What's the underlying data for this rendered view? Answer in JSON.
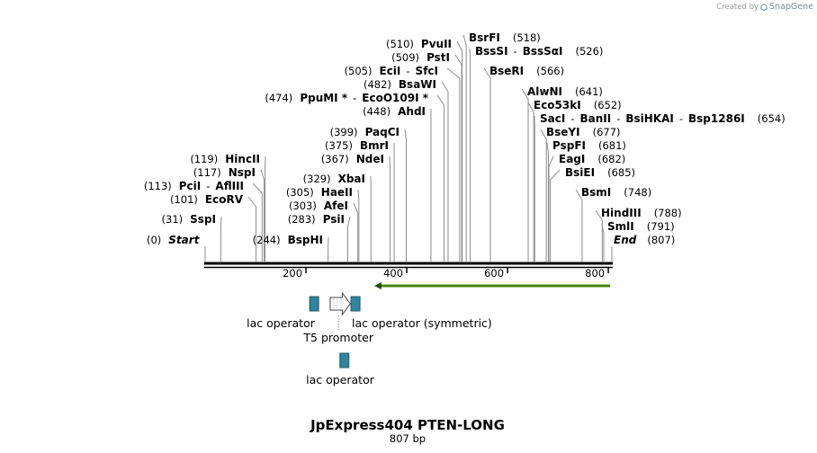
{
  "watermark": {
    "created_by": "Created by",
    "brand": "SnapGene",
    "logo_icon": "snapgene-logo-icon"
  },
  "plasmid": {
    "name": "JpExpress404 PTEN-LONG",
    "length_label": "807 bp",
    "length_bp": 807,
    "scale_ticks": [
      {
        "bp": 200,
        "label": "200"
      },
      {
        "bp": 400,
        "label": "400"
      },
      {
        "bp": 600,
        "label": "600"
      },
      {
        "bp": 800,
        "label": "800"
      }
    ]
  },
  "ends": [
    {
      "label": "Start",
      "pos_label": "(0)",
      "bp": 0
    },
    {
      "label": "End",
      "pos_label": "(807)",
      "bp": 807
    }
  ],
  "enzyme_rows": [
    {
      "bp": 31,
      "parts": [
        {
          "t": "pos",
          "v": "(31)"
        },
        {
          "t": "name",
          "v": "SspI"
        }
      ]
    },
    {
      "bp": 101,
      "parts": [
        {
          "t": "pos",
          "v": "(101)"
        },
        {
          "t": "name",
          "v": "EcoRV"
        }
      ]
    },
    {
      "bp": 113,
      "parts": [
        {
          "t": "pos",
          "v": "(113)"
        },
        {
          "t": "name",
          "v": "PciI"
        },
        {
          "t": "sep",
          "v": "-"
        },
        {
          "t": "name",
          "v": "AflIII"
        }
      ]
    },
    {
      "bp": 117,
      "parts": [
        {
          "t": "pos",
          "v": "(117)"
        },
        {
          "t": "name",
          "v": "NspI"
        }
      ]
    },
    {
      "bp": 119,
      "parts": [
        {
          "t": "pos",
          "v": "(119)"
        },
        {
          "t": "name",
          "v": "HincII"
        }
      ]
    },
    {
      "bp": 244,
      "parts": [
        {
          "t": "pos",
          "v": "(244)"
        },
        {
          "t": "name",
          "v": "BspHI"
        }
      ]
    },
    {
      "bp": 283,
      "parts": [
        {
          "t": "pos",
          "v": "(283)"
        },
        {
          "t": "name",
          "v": "PsiI"
        }
      ]
    },
    {
      "bp": 303,
      "parts": [
        {
          "t": "pos",
          "v": "(303)"
        },
        {
          "t": "name",
          "v": "AfeI"
        }
      ]
    },
    {
      "bp": 305,
      "parts": [
        {
          "t": "pos",
          "v": "(305)"
        },
        {
          "t": "name",
          "v": "HaeII"
        }
      ]
    },
    {
      "bp": 329,
      "parts": [
        {
          "t": "pos",
          "v": "(329)"
        },
        {
          "t": "name",
          "v": "XbaI"
        }
      ]
    },
    {
      "bp": 367,
      "parts": [
        {
          "t": "pos",
          "v": "(367)"
        },
        {
          "t": "name",
          "v": "NdeI"
        }
      ]
    },
    {
      "bp": 375,
      "parts": [
        {
          "t": "pos",
          "v": "(375)"
        },
        {
          "t": "name",
          "v": "BmrI"
        }
      ]
    },
    {
      "bp": 399,
      "parts": [
        {
          "t": "pos",
          "v": "(399)"
        },
        {
          "t": "name",
          "v": "PaqCI"
        }
      ]
    },
    {
      "bp": 448,
      "parts": [
        {
          "t": "pos",
          "v": "(448)"
        },
        {
          "t": "name",
          "v": "AhdI"
        }
      ]
    },
    {
      "bp": 474,
      "parts": [
        {
          "t": "pos",
          "v": "(474)"
        },
        {
          "t": "name",
          "v": "PpuMI *"
        },
        {
          "t": "sep",
          "v": "-"
        },
        {
          "t": "name",
          "v": "EcoO109I *"
        }
      ]
    },
    {
      "bp": 482,
      "parts": [
        {
          "t": "pos",
          "v": "(482)"
        },
        {
          "t": "name",
          "v": "BsaWI"
        }
      ]
    },
    {
      "bp": 505,
      "parts": [
        {
          "t": "pos",
          "v": "(505)"
        },
        {
          "t": "name",
          "v": "EciI"
        },
        {
          "t": "sep",
          "v": "-"
        },
        {
          "t": "name",
          "v": "SfcI"
        }
      ]
    },
    {
      "bp": 509,
      "parts": [
        {
          "t": "pos",
          "v": "(509)"
        },
        {
          "t": "name",
          "v": "PstI"
        }
      ]
    },
    {
      "bp": 510,
      "parts": [
        {
          "t": "pos",
          "v": "(510)"
        },
        {
          "t": "name",
          "v": "PvuII"
        }
      ]
    },
    {
      "bp": 518,
      "parts": [
        {
          "t": "name",
          "v": "BsrFI"
        },
        {
          "t": "pos",
          "v": "(518)"
        }
      ]
    },
    {
      "bp": 526,
      "parts": [
        {
          "t": "name",
          "v": "BssSI"
        },
        {
          "t": "sep",
          "v": "-"
        },
        {
          "t": "name",
          "v": "BssSαI"
        },
        {
          "t": "pos",
          "v": "(526)"
        }
      ]
    },
    {
      "bp": 566,
      "parts": [
        {
          "t": "name",
          "v": "BseRI"
        },
        {
          "t": "pos",
          "v": "(566)"
        }
      ]
    },
    {
      "bp": 641,
      "parts": [
        {
          "t": "name",
          "v": "AlwNI"
        },
        {
          "t": "pos",
          "v": "(641)"
        }
      ]
    },
    {
      "bp": 652,
      "parts": [
        {
          "t": "name",
          "v": "Eco53kI"
        },
        {
          "t": "pos",
          "v": "(652)"
        }
      ]
    },
    {
      "bp": 654,
      "parts": [
        {
          "t": "name",
          "v": "SacI"
        },
        {
          "t": "sep",
          "v": "-"
        },
        {
          "t": "name",
          "v": "BanII"
        },
        {
          "t": "sep",
          "v": "-"
        },
        {
          "t": "name",
          "v": "BsiHKAI"
        },
        {
          "t": "sep",
          "v": "-"
        },
        {
          "t": "name",
          "v": "Bsp1286I"
        },
        {
          "t": "pos",
          "v": "(654)"
        }
      ]
    },
    {
      "bp": 677,
      "parts": [
        {
          "t": "name",
          "v": "BseYI"
        },
        {
          "t": "pos",
          "v": "(677)"
        }
      ]
    },
    {
      "bp": 681,
      "parts": [
        {
          "t": "name",
          "v": "PspFI"
        },
        {
          "t": "pos",
          "v": "(681)"
        }
      ]
    },
    {
      "bp": 682,
      "parts": [
        {
          "t": "name",
          "v": "EagI"
        },
        {
          "t": "pos",
          "v": "(682)"
        }
      ]
    },
    {
      "bp": 685,
      "parts": [
        {
          "t": "name",
          "v": "BsiEI"
        },
        {
          "t": "pos",
          "v": "(685)"
        }
      ]
    },
    {
      "bp": 748,
      "parts": [
        {
          "t": "name",
          "v": "BsmI"
        },
        {
          "t": "pos",
          "v": "(748)"
        }
      ]
    },
    {
      "bp": 788,
      "parts": [
        {
          "t": "name",
          "v": "HindIII"
        },
        {
          "t": "pos",
          "v": "(788)"
        }
      ]
    },
    {
      "bp": 791,
      "parts": [
        {
          "t": "name",
          "v": "SmlI"
        },
        {
          "t": "pos",
          "v": "(791)"
        }
      ]
    }
  ],
  "features": [
    {
      "name": "lac-operator",
      "label": "lac operator",
      "type": "protein_bind",
      "start_bp": 202,
      "end_bp": 222,
      "color": "#31849b"
    },
    {
      "name": "t5-promoter",
      "label": "T5 promoter",
      "type": "promoter",
      "start_bp": 241,
      "end_bp": 281,
      "color": "#ffffff"
    },
    {
      "name": "lac-operator-symmetric",
      "label": "lac operator (symmetric)",
      "type": "protein_bind",
      "start_bp": 284,
      "end_bp": 304,
      "color": "#31849b"
    },
    {
      "name": "lac-operator-2",
      "label": "lac operator",
      "type": "protein_bind",
      "start_bp": 262,
      "end_bp": 282,
      "color": "#31849b"
    },
    {
      "name": "pten-orf-arrow",
      "label": "",
      "type": "orf",
      "start_bp": 332,
      "end_bp": 807,
      "direction": "reverse",
      "color": "#6aaa2a"
    }
  ]
}
